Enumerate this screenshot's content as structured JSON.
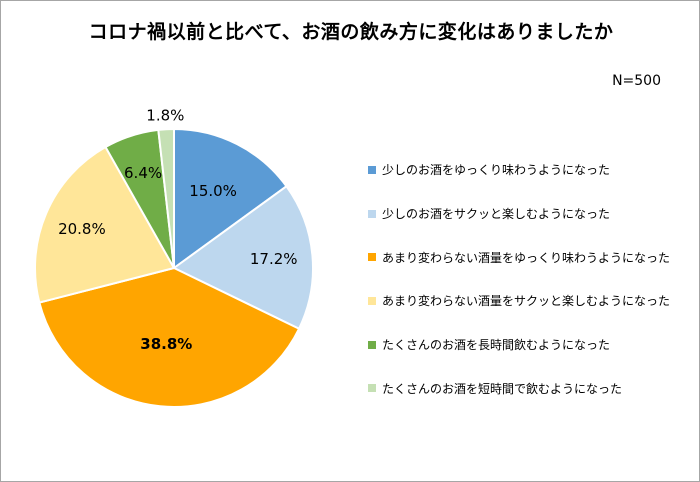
{
  "chart_data": {
    "type": "pie",
    "title": "コロナ禍以前と比べて、お酒の飲み方に変化はありましたか",
    "sample_size_label": "N=500",
    "legend_position": "right",
    "start_angle_deg": 0,
    "direction": "clockwise",
    "slices": [
      {
        "label": "少しのお酒をゆっくり味わうようになった",
        "value": 15.0,
        "value_label": "15.0%",
        "color": "#5b9bd5",
        "bold": false
      },
      {
        "label": "少しのお酒をサクッと楽しむようになった",
        "value": 17.2,
        "value_label": "17.2%",
        "color": "#bdd7ee",
        "bold": false
      },
      {
        "label": "あまり変わらない酒量をゆっくり味わうようになった",
        "value": 38.8,
        "value_label": "38.8%",
        "color": "#ffa500",
        "bold": true
      },
      {
        "label": "あまり変わらない酒量をサクッと楽しむようになった",
        "value": 20.8,
        "value_label": "20.8%",
        "color": "#ffe699",
        "bold": false
      },
      {
        "label": "たくさんのお酒を長時間飲むようになった",
        "value": 6.4,
        "value_label": "6.4%",
        "color": "#70ad47",
        "bold": false
      },
      {
        "label": "たくさんのお酒を短時間で飲むようになった",
        "value": 1.8,
        "value_label": "1.8%",
        "color": "#c5e0b4",
        "bold": false
      }
    ]
  }
}
